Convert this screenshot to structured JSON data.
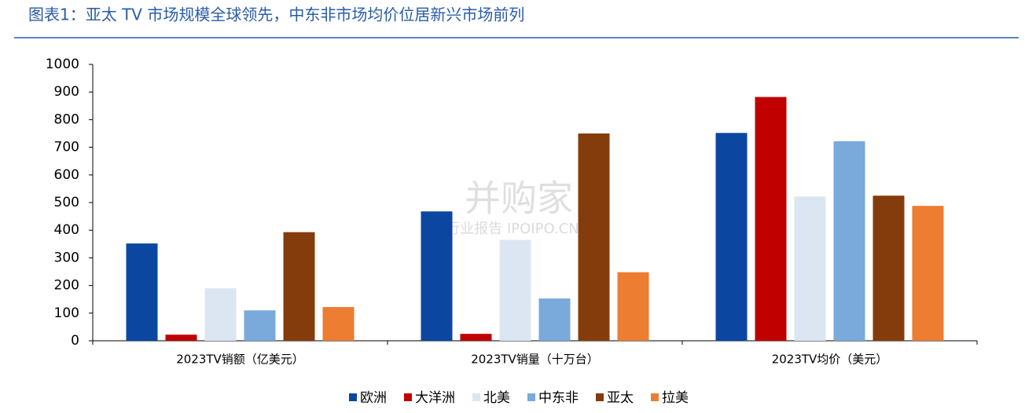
{
  "chart_data": {
    "type": "bar",
    "title": "图表1：亚太 TV 市场规模全球领先，中东非市场均价位居新兴市场前列",
    "watermark": [
      "并购家",
      "行业报告 IPOIPO.CN"
    ],
    "categories": [
      "2023TV销额（亿美元）",
      "2023TV销量（十万台）",
      "2023TV均价（美元）"
    ],
    "series": [
      {
        "name": "欧洲",
        "color": "#0b47a0",
        "values": [
          352,
          468,
          752
        ]
      },
      {
        "name": "大洋洲",
        "color": "#c00000",
        "values": [
          22,
          25,
          882
        ]
      },
      {
        "name": "北美",
        "color": "#dce6f2",
        "values": [
          190,
          365,
          522
        ]
      },
      {
        "name": "中东非",
        "color": "#7aa9db",
        "values": [
          110,
          153,
          722
        ]
      },
      {
        "name": "亚太",
        "color": "#843c0c",
        "values": [
          393,
          750,
          525
        ]
      },
      {
        "name": "拉美",
        "color": "#ed7d31",
        "values": [
          122,
          248,
          488
        ]
      }
    ],
    "ylim": [
      0,
      1000
    ],
    "yticks": [
      0,
      100,
      200,
      300,
      400,
      500,
      600,
      700,
      800,
      900,
      1000
    ],
    "grid": false,
    "legend": "bottom"
  }
}
